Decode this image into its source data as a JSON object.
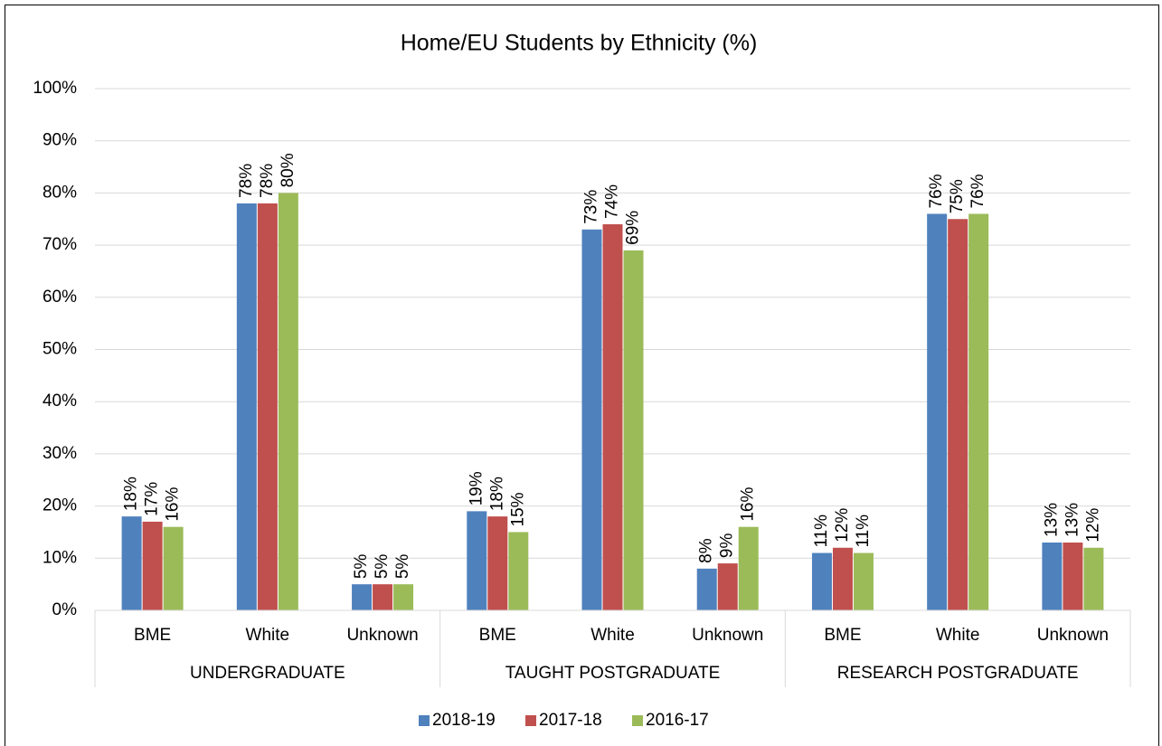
{
  "chart_data": {
    "type": "bar",
    "title": "Home/EU Students by Ethnicity (%)",
    "categories": [
      "BME",
      "White",
      "Unknown",
      "BME",
      "White",
      "Unknown",
      "BME",
      "White",
      "Unknown"
    ],
    "groups": [
      "UNDERGRADUATE",
      "TAUGHT POSTGRADUATE",
      "RESEARCH POSTGRADUATE"
    ],
    "series": [
      {
        "name": "2018-19",
        "color": "#4f81bd",
        "values": [
          18,
          78,
          5,
          19,
          73,
          8,
          11,
          76,
          13
        ],
        "value_labels": [
          "18%",
          "78%",
          "5%",
          "19%",
          "73%",
          "8%",
          "11%",
          "76%",
          "13%"
        ]
      },
      {
        "name": "2017-18",
        "color": "#c0504d",
        "values": [
          17,
          78,
          5,
          18,
          74,
          9,
          12,
          75,
          13
        ],
        "value_labels": [
          "17%",
          "78%",
          "5%",
          "18%",
          "74%",
          "9%",
          "12%",
          "75%",
          "13%"
        ]
      },
      {
        "name": "2016-17",
        "color": "#9bbb59",
        "values": [
          16,
          80,
          5,
          15,
          69,
          16,
          11,
          76,
          12
        ],
        "value_labels": [
          "16%",
          "80%",
          "5%",
          "15%",
          "69%",
          "16%",
          "11%",
          "76%",
          "12%"
        ]
      }
    ],
    "ylim": [
      0,
      100
    ],
    "yticks": [
      {
        "value": 0,
        "label": "0%"
      },
      {
        "value": 10,
        "label": "10%"
      },
      {
        "value": 20,
        "label": "20%"
      },
      {
        "value": 30,
        "label": "30%"
      },
      {
        "value": 40,
        "label": "40%"
      },
      {
        "value": 50,
        "label": "50%"
      },
      {
        "value": 60,
        "label": "60%"
      },
      {
        "value": 70,
        "label": "70%"
      },
      {
        "value": 80,
        "label": "80%"
      },
      {
        "value": 90,
        "label": "90%"
      },
      {
        "value": 100,
        "label": "100%"
      }
    ],
    "grid": true,
    "legend": "bottom"
  }
}
